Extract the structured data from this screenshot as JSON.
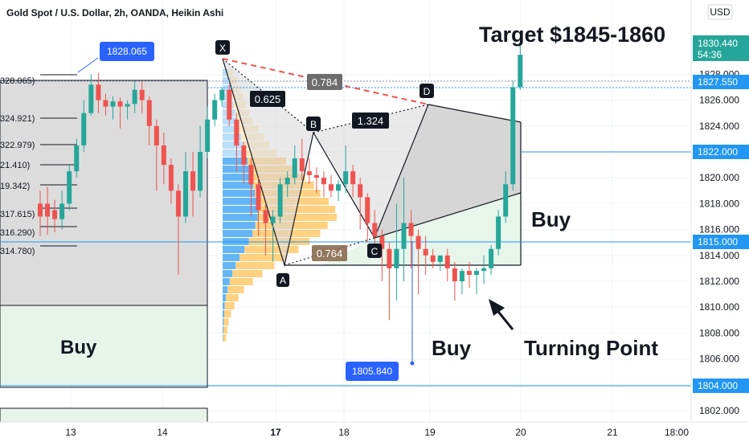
{
  "header": {
    "symbol": "Gold Spot / U.S. Dollar, 2h, OANDA, Heikin Ashi",
    "currency": "USD"
  },
  "colors": {
    "up": "#26a69a",
    "down": "#ef5350",
    "blue": "#2962ff",
    "level": "#2196f3",
    "vp_blue": "#64b5f6",
    "vp_yellow": "#ffd180",
    "buy_zone": "#e6f4ea",
    "pattern_gray": "#d4d4d4"
  },
  "annotations": {
    "target": "Target $1845-1860",
    "buy_left": "Buy",
    "buy_mid": "Buy",
    "buy_right": "Buy",
    "turning_point": "Turning Point",
    "high_label": "1828.065",
    "low_label": "1805.840",
    "ratio_xd": "0.784",
    "ratio_xb": "0.625",
    "ratio_bd": "1.324",
    "ratio_ac": "0.764",
    "point_x": "X",
    "point_a": "A",
    "point_b": "B",
    "point_c": "C",
    "point_d": "D"
  },
  "fib_labels": [
    "328.065)",
    "324.921)",
    "322.979)",
    "21.410)",
    "19.342)",
    "317.615)",
    "316.290)",
    "314.780)"
  ],
  "price_tags": {
    "current": "1830.440",
    "countdown": "54:36",
    "level_1": "1827.550",
    "level_2": "1822.000",
    "level_3": "1815.000",
    "level_4": "1804.000"
  },
  "chart_data": {
    "type": "candlestick",
    "title": "Gold Spot / U.S. Dollar, 2h, OANDA, Heikin Ashi",
    "y_range": [
      1801,
      1833
    ],
    "y_ticks": [
      1802,
      1804,
      1806,
      1808,
      1810,
      1812,
      1814,
      1816,
      1818,
      1820,
      1822,
      1824,
      1826,
      1828
    ],
    "x_ticks": [
      "13",
      "14",
      "17",
      "18",
      "19",
      "20",
      "21",
      "18:00"
    ],
    "horizontal_levels": [
      1827.55,
      1822.0,
      1815.0,
      1804.0
    ],
    "candles": [
      {
        "o": 1818.0,
        "h": 1819.0,
        "c": 1817.0,
        "l": 1815.5
      },
      {
        "o": 1818.0,
        "h": 1819.3,
        "c": 1817.0,
        "l": 1815.6
      },
      {
        "o": 1817.5,
        "h": 1818.3,
        "c": 1816.8,
        "l": 1815.8
      },
      {
        "o": 1816.8,
        "h": 1819.0,
        "c": 1818.0,
        "l": 1816.0
      },
      {
        "o": 1818.0,
        "h": 1821.0,
        "c": 1820.5,
        "l": 1817.5
      },
      {
        "o": 1820.5,
        "h": 1823.0,
        "c": 1822.5,
        "l": 1820.0
      },
      {
        "o": 1822.5,
        "h": 1826.0,
        "c": 1825.0,
        "l": 1822.0
      },
      {
        "o": 1825.0,
        "h": 1828.0,
        "c": 1827.2,
        "l": 1824.8
      },
      {
        "o": 1827.2,
        "h": 1828.1,
        "c": 1826.0,
        "l": 1825.0
      },
      {
        "o": 1826.0,
        "h": 1826.5,
        "c": 1825.5,
        "l": 1824.8
      },
      {
        "o": 1825.5,
        "h": 1826.3,
        "c": 1825.9,
        "l": 1824.5
      },
      {
        "o": 1825.9,
        "h": 1826.2,
        "c": 1825.5,
        "l": 1823.8
      },
      {
        "o": 1825.5,
        "h": 1826.0,
        "c": 1825.7,
        "l": 1824.5
      },
      {
        "o": 1825.7,
        "h": 1827.5,
        "c": 1826.8,
        "l": 1825.0
      },
      {
        "o": 1826.8,
        "h": 1827.5,
        "c": 1826.0,
        "l": 1825.0
      },
      {
        "o": 1826.0,
        "h": 1826.3,
        "c": 1824.0,
        "l": 1822.5
      },
      {
        "o": 1824.0,
        "h": 1824.5,
        "c": 1822.5,
        "l": 1819.0
      },
      {
        "o": 1822.5,
        "h": 1823.5,
        "c": 1821.0,
        "l": 1819.5
      },
      {
        "o": 1821.0,
        "h": 1821.5,
        "c": 1819.0,
        "l": 1818.0
      },
      {
        "o": 1819.0,
        "h": 1819.5,
        "c": 1817.0,
        "l": 1812.5
      },
      {
        "o": 1817.0,
        "h": 1822.0,
        "c": 1820.5,
        "l": 1816.5
      },
      {
        "o": 1820.5,
        "h": 1822.0,
        "c": 1819.0,
        "l": 1817.0
      },
      {
        "o": 1819.0,
        "h": 1824.0,
        "c": 1822.0,
        "l": 1818.5
      },
      {
        "o": 1822.0,
        "h": 1825.5,
        "c": 1824.5,
        "l": 1821.5
      },
      {
        "o": 1824.5,
        "h": 1826.5,
        "c": 1826.0,
        "l": 1824.0
      },
      {
        "o": 1826.0,
        "h": 1827.0,
        "c": 1826.8,
        "l": 1825.5
      },
      {
        "o": 1826.8,
        "h": 1827.2,
        "c": 1824.5,
        "l": 1824.0
      },
      {
        "o": 1824.5,
        "h": 1825.0,
        "c": 1822.5,
        "l": 1820.5
      },
      {
        "o": 1822.5,
        "h": 1822.8,
        "c": 1821.0,
        "l": 1819.5
      },
      {
        "o": 1821.0,
        "h": 1821.5,
        "c": 1819.5,
        "l": 1817.0
      },
      {
        "o": 1819.5,
        "h": 1820.0,
        "c": 1817.5,
        "l": 1815.5
      },
      {
        "o": 1817.5,
        "h": 1818.0,
        "c": 1816.5,
        "l": 1814.0
      },
      {
        "o": 1816.5,
        "h": 1817.5,
        "c": 1817.0,
        "l": 1813.5
      },
      {
        "o": 1817.0,
        "h": 1820.0,
        "c": 1819.5,
        "l": 1816.5
      },
      {
        "o": 1819.5,
        "h": 1820.5,
        "c": 1820.0,
        "l": 1818.5
      },
      {
        "o": 1820.0,
        "h": 1822.5,
        "c": 1821.5,
        "l": 1819.5
      },
      {
        "o": 1821.5,
        "h": 1823.0,
        "c": 1820.5,
        "l": 1819.8
      },
      {
        "o": 1820.5,
        "h": 1821.5,
        "c": 1820.2,
        "l": 1819.5
      },
      {
        "o": 1820.2,
        "h": 1820.8,
        "c": 1820.0,
        "l": 1818.8
      },
      {
        "o": 1820.0,
        "h": 1820.5,
        "c": 1819.5,
        "l": 1818.5
      },
      {
        "o": 1819.5,
        "h": 1820.2,
        "c": 1819.0,
        "l": 1818.5
      },
      {
        "o": 1819.0,
        "h": 1819.8,
        "c": 1819.5,
        "l": 1818.2
      },
      {
        "o": 1819.5,
        "h": 1822.5,
        "c": 1820.5,
        "l": 1818.8
      },
      {
        "o": 1820.5,
        "h": 1821.0,
        "c": 1819.5,
        "l": 1818.5
      },
      {
        "o": 1819.5,
        "h": 1820.0,
        "c": 1818.5,
        "l": 1816.0
      },
      {
        "o": 1818.5,
        "h": 1818.8,
        "c": 1816.5,
        "l": 1815.0
      },
      {
        "o": 1816.5,
        "h": 1817.5,
        "c": 1815.5,
        "l": 1814.0
      },
      {
        "o": 1815.5,
        "h": 1816.0,
        "c": 1814.5,
        "l": 1812.0
      },
      {
        "o": 1814.5,
        "h": 1815.0,
        "c": 1813.0,
        "l": 1809.0
      },
      {
        "o": 1813.0,
        "h": 1818.0,
        "c": 1814.5,
        "l": 1810.5
      },
      {
        "o": 1814.5,
        "h": 1820.0,
        "c": 1816.5,
        "l": 1812.0
      },
      {
        "o": 1816.5,
        "h": 1817.5,
        "c": 1815.5,
        "l": 1813.0
      },
      {
        "o": 1815.5,
        "h": 1816.0,
        "c": 1814.5,
        "l": 1811.0
      },
      {
        "o": 1814.5,
        "h": 1815.5,
        "c": 1814.0,
        "l": 1812.5
      },
      {
        "o": 1814.0,
        "h": 1814.5,
        "c": 1813.5,
        "l": 1813.0
      },
      {
        "o": 1813.5,
        "h": 1814.0,
        "c": 1814.0,
        "l": 1812.8
      },
      {
        "o": 1814.0,
        "h": 1814.5,
        "c": 1813.0,
        "l": 1812.0
      },
      {
        "o": 1813.0,
        "h": 1813.5,
        "c": 1812.0,
        "l": 1810.5
      },
      {
        "o": 1812.0,
        "h": 1813.0,
        "c": 1812.8,
        "l": 1811.0
      },
      {
        "o": 1812.8,
        "h": 1813.5,
        "c": 1812.5,
        "l": 1811.5
      },
      {
        "o": 1812.5,
        "h": 1813.0,
        "c": 1812.8,
        "l": 1811.0
      },
      {
        "o": 1812.8,
        "h": 1814.0,
        "c": 1813.0,
        "l": 1811.8
      },
      {
        "o": 1813.0,
        "h": 1814.8,
        "c": 1814.5,
        "l": 1812.5
      },
      {
        "o": 1814.5,
        "h": 1817.5,
        "c": 1817.0,
        "l": 1814.0
      },
      {
        "o": 1817.0,
        "h": 1820.5,
        "c": 1819.5,
        "l": 1816.5
      },
      {
        "o": 1819.5,
        "h": 1827.5,
        "c": 1827.0,
        "l": 1819.0
      },
      {
        "o": 1827.0,
        "h": 1830.5,
        "c": 1829.5,
        "l": 1826.8
      }
    ]
  }
}
